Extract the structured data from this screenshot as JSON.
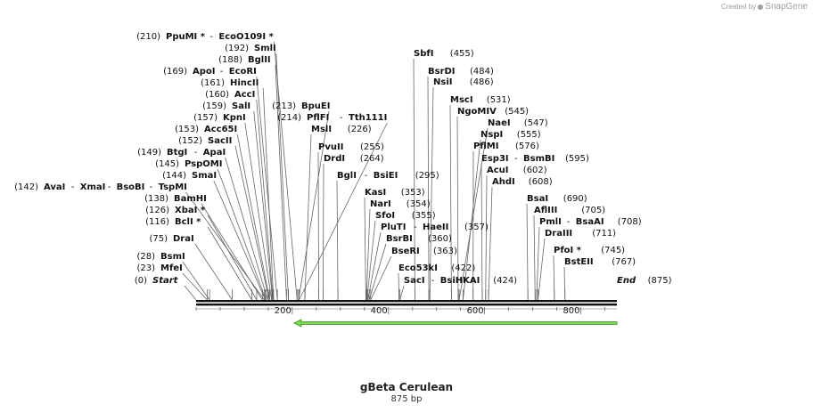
{
  "branding": {
    "created_by": "Created by",
    "brand": "SnapGene"
  },
  "sequence": {
    "name": "gBeta Cerulean",
    "length_label": "875 bp",
    "length_bp": 875
  },
  "ruler": {
    "ticks": [
      200,
      400,
      600,
      800
    ]
  },
  "features": [
    {
      "name": "green-arrow",
      "start": 200,
      "end": 875,
      "direction": "forward",
      "color": "#7ed957",
      "stroke": "#3a8a1a"
    }
  ],
  "ends": [
    {
      "label": "Start",
      "pos": "(0)",
      "bp": 0
    },
    {
      "label": "End",
      "pos": "(875)",
      "bp": 875
    }
  ],
  "sites": [
    {
      "names": [
        "BstEII"
      ],
      "pos": "(767)",
      "bp": 767
    },
    {
      "names": [
        "PfoI *"
      ],
      "pos": "(745)",
      "bp": 745
    },
    {
      "names": [
        "DraIII"
      ],
      "pos": "(711)",
      "bp": 711
    },
    {
      "names": [
        "PmlI",
        "BsaAI"
      ],
      "pos": "(708)",
      "bp": 708
    },
    {
      "names": [
        "AflIII"
      ],
      "pos": "(705)",
      "bp": 705
    },
    {
      "names": [
        "BsaI"
      ],
      "pos": "(690)",
      "bp": 690
    },
    {
      "names": [
        "SacI",
        "BsiHKAI"
      ],
      "pos": "(424)",
      "bp": 424
    },
    {
      "names": [
        "Eco53kI"
      ],
      "pos": "(422)",
      "bp": 422
    },
    {
      "names": [
        "BseRI"
      ],
      "pos": "(363)",
      "bp": 363
    },
    {
      "names": [
        "BsrBI"
      ],
      "pos": "(360)",
      "bp": 360
    },
    {
      "names": [
        "PluTI",
        "HaeII"
      ],
      "pos": "(357)",
      "bp": 357
    },
    {
      "names": [
        "SfoI"
      ],
      "pos": "(355)",
      "bp": 355
    },
    {
      "names": [
        "NarI"
      ],
      "pos": "(354)",
      "bp": 354
    },
    {
      "names": [
        "KasI"
      ],
      "pos": "(353)",
      "bp": 353
    },
    {
      "names": [
        "AhdI"
      ],
      "pos": "(608)",
      "bp": 608
    },
    {
      "names": [
        "AcuI"
      ],
      "pos": "(602)",
      "bp": 602
    },
    {
      "names": [
        "Esp3I",
        "BsmBI"
      ],
      "pos": "(595)",
      "bp": 595
    },
    {
      "names": [
        "PflMI"
      ],
      "pos": "(576)",
      "bp": 576
    },
    {
      "names": [
        "NspI"
      ],
      "pos": "(555)",
      "bp": 555
    },
    {
      "names": [
        "NaeI"
      ],
      "pos": "(547)",
      "bp": 547
    },
    {
      "names": [
        "NgoMIV"
      ],
      "pos": "(545)",
      "bp": 545
    },
    {
      "names": [
        "MscI"
      ],
      "pos": "(531)",
      "bp": 531
    },
    {
      "names": [
        "NsiI"
      ],
      "pos": "(486)",
      "bp": 486
    },
    {
      "names": [
        "BsrDI"
      ],
      "pos": "(484)",
      "bp": 484
    },
    {
      "names": [
        "SbfI"
      ],
      "pos": "(455)",
      "bp": 455
    },
    {
      "names": [
        "BglI",
        "BsiEI"
      ],
      "pos": "(295)",
      "bp": 295
    },
    {
      "names": [
        "DrdI"
      ],
      "pos": "(264)",
      "bp": 264
    },
    {
      "names": [
        "PvuII"
      ],
      "pos": "(255)",
      "bp": 255
    },
    {
      "names": [
        "MslI"
      ],
      "pos": "(226)",
      "bp": 226
    },
    {
      "names": [
        "PflFI",
        "Tth111I"
      ],
      "pos": "(214)",
      "bp": 214
    },
    {
      "names": [
        "BpuEI"
      ],
      "pos": "(213)",
      "bp": 213
    },
    {
      "names": [
        "MfeI"
      ],
      "pos": "(23)",
      "bp": 23
    },
    {
      "names": [
        "BsmI"
      ],
      "pos": "(28)",
      "bp": 28
    },
    {
      "names": [
        "DraI"
      ],
      "pos": "(75)",
      "bp": 75
    },
    {
      "names": [
        "BclI *"
      ],
      "pos": "(116)",
      "bp": 116
    },
    {
      "names": [
        "XbaI *"
      ],
      "pos": "(126)",
      "bp": 126
    },
    {
      "names": [
        "BamHI"
      ],
      "pos": "(138)",
      "bp": 138
    },
    {
      "names": [
        "AvaI",
        "XmaI",
        "BsoBI",
        "TspMI"
      ],
      "pos": "(142)",
      "bp": 142
    },
    {
      "names": [
        "SmaI"
      ],
      "pos": "(144)",
      "bp": 144
    },
    {
      "names": [
        "PspOMI"
      ],
      "pos": "(145)",
      "bp": 145
    },
    {
      "names": [
        "BtgI",
        "ApaI"
      ],
      "pos": "(149)",
      "bp": 149
    },
    {
      "names": [
        "SacII"
      ],
      "pos": "(152)",
      "bp": 152
    },
    {
      "names": [
        "Acc65I"
      ],
      "pos": "(153)",
      "bp": 153
    },
    {
      "names": [
        "KpnI"
      ],
      "pos": "(157)",
      "bp": 157
    },
    {
      "names": [
        "SalI"
      ],
      "pos": "(159)",
      "bp": 159
    },
    {
      "names": [
        "AccI"
      ],
      "pos": "(160)",
      "bp": 160
    },
    {
      "names": [
        "HincII"
      ],
      "pos": "(161)",
      "bp": 161
    },
    {
      "names": [
        "ApoI",
        "EcoRI"
      ],
      "pos": "(169)",
      "bp": 169
    },
    {
      "names": [
        "BglII"
      ],
      "pos": "(188)",
      "bp": 188
    },
    {
      "names": [
        "SmlI"
      ],
      "pos": "(192)",
      "bp": 192
    },
    {
      "names": [
        "PpuMI *",
        "EcoO109I *"
      ],
      "pos": "(210)",
      "bp": 210
    }
  ]
}
